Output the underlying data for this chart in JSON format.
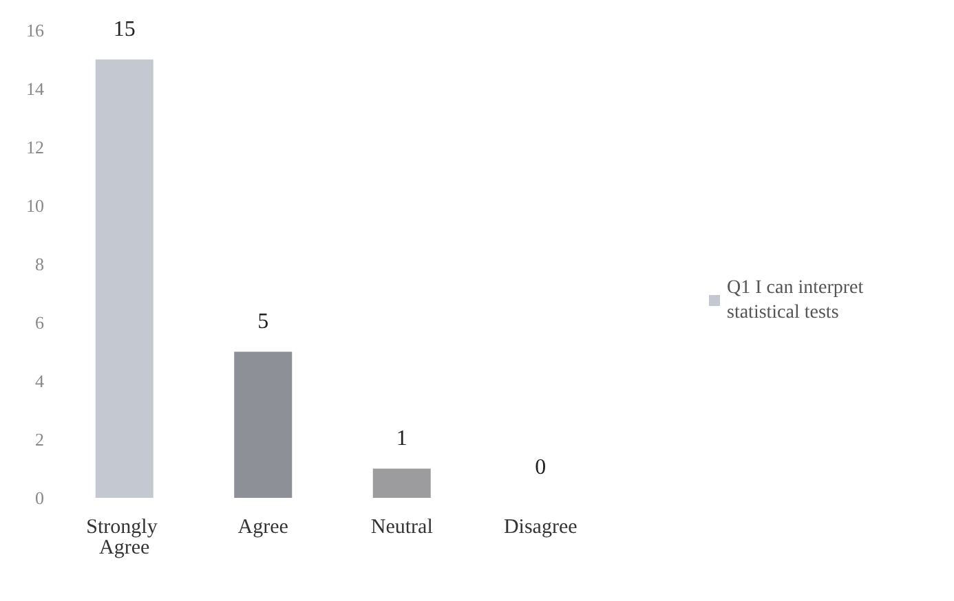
{
  "chart_data": {
    "type": "bar",
    "categories": [
      "Strongly Agree",
      "Agree",
      "Neutral",
      "Disagree"
    ],
    "series": [
      {
        "name": "Q1 I can interpret statistical tests",
        "color": "#c4c8d0",
        "colors": [
          "#c4c8d0",
          "#8e9098",
          "#9c9c9e",
          "#9c9c9e"
        ],
        "values": [
          15,
          5,
          1,
          0
        ]
      }
    ],
    "ylim": [
      0,
      16
    ],
    "yticks": [
      0,
      2,
      4,
      6,
      8,
      10,
      12,
      14,
      16
    ],
    "data_labels": true,
    "grid": false,
    "legend": "right"
  }
}
